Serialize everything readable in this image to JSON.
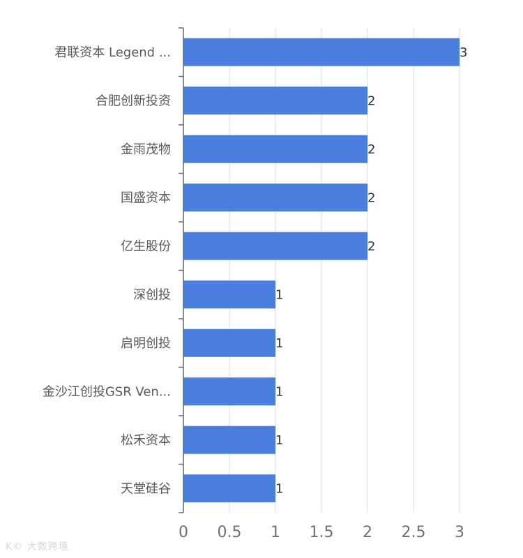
{
  "chart_data": {
    "type": "bar",
    "orientation": "horizontal",
    "categories": [
      "君联资本 Legend ...",
      "合肥创新投资",
      "金雨茂物",
      "国盛资本",
      "亿生股份",
      "深创投",
      "启明创投",
      "金沙江创投GSR Ven...",
      "松禾资本",
      "天堂硅谷"
    ],
    "values": [
      3,
      2,
      2,
      2,
      2,
      1,
      1,
      1,
      1,
      1
    ],
    "xlim": [
      0,
      3
    ],
    "xticks": [
      "0",
      "0.5",
      "1",
      "1.5",
      "2",
      "2.5",
      "3"
    ],
    "tick_values": [
      0,
      0.5,
      1,
      1.5,
      2,
      2.5,
      3
    ],
    "grid": true,
    "bar_color": "#4a7fe0",
    "grid_color": "#d8dee6",
    "axis_color": "#666666"
  },
  "watermark": "K© 大数跨境"
}
